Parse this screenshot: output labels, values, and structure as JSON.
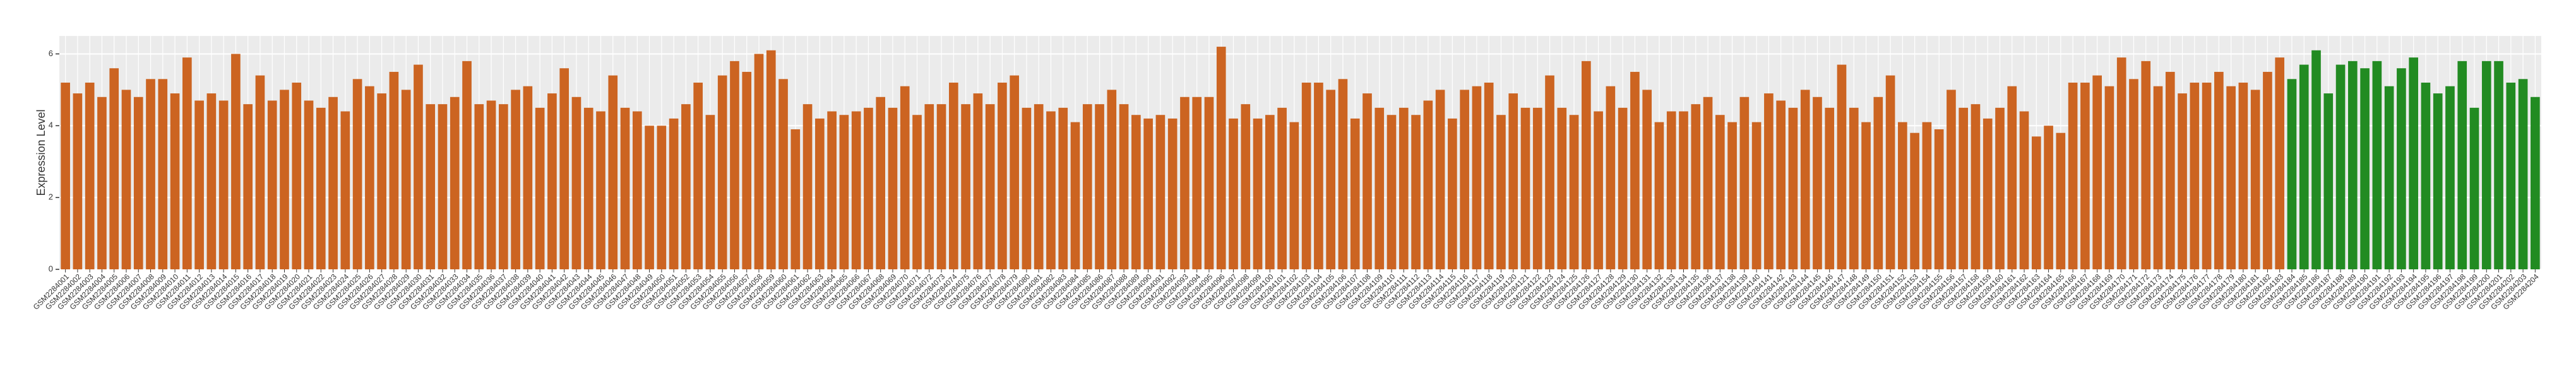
{
  "chart_data": {
    "type": "bar",
    "y_label": "Expression Level",
    "categories": [
      "GSM2284001",
      "GSM2284002",
      "GSM2284003",
      "GSM2284004",
      "GSM2284005",
      "GSM2284006",
      "GSM2284007",
      "GSM2284008",
      "GSM2284009",
      "GSM2284010",
      "GSM2284011",
      "GSM2284012",
      "GSM2284013",
      "GSM2284014",
      "GSM2284015",
      "GSM2284016",
      "GSM2284017",
      "GSM2284018",
      "GSM2284019",
      "GSM2284020",
      "GSM2284021",
      "GSM2284022",
      "GSM2284023",
      "GSM2284024",
      "GSM2284025",
      "GSM2284026",
      "GSM2284027",
      "GSM2284028",
      "GSM2284029",
      "GSM2284030",
      "GSM2284031",
      "GSM2284032",
      "GSM2284033",
      "GSM2284034",
      "GSM2284035",
      "GSM2284036",
      "GSM2284037",
      "GSM2284038",
      "GSM2284039",
      "GSM2284040",
      "GSM2284041",
      "GSM2284042",
      "GSM2284043",
      "GSM2284044",
      "GSM2284045",
      "GSM2284046",
      "GSM2284047",
      "GSM2284048",
      "GSM2284049",
      "GSM2284050",
      "GSM2284051",
      "GSM2284052",
      "GSM2284053",
      "GSM2284054",
      "GSM2284055",
      "GSM2284056",
      "GSM2284057",
      "GSM2284058",
      "GSM2284059",
      "GSM2284060",
      "GSM2284061",
      "GSM2284062",
      "GSM2284063",
      "GSM2284064",
      "GSM2284065",
      "GSM2284066",
      "GSM2284067",
      "GSM2284068",
      "GSM2284069",
      "GSM2284070",
      "GSM2284071",
      "GSM2284072",
      "GSM2284073",
      "GSM2284074",
      "GSM2284075",
      "GSM2284076",
      "GSM2284077",
      "GSM2284078",
      "GSM2284079",
      "GSM2284080",
      "GSM2284081",
      "GSM2284082",
      "GSM2284083",
      "GSM2284084",
      "GSM2284085",
      "GSM2284086",
      "GSM2284087",
      "GSM2284088",
      "GSM2284089",
      "GSM2284090",
      "GSM2284091",
      "GSM2284092",
      "GSM2284093",
      "GSM2284094",
      "GSM2284095",
      "GSM2284096",
      "GSM2284097",
      "GSM2284098",
      "GSM2284099",
      "GSM2284100",
      "GSM2284101",
      "GSM2284102",
      "GSM2284103",
      "GSM2284104",
      "GSM2284105",
      "GSM2284106",
      "GSM2284107",
      "GSM2284108",
      "GSM2284109",
      "GSM2284110",
      "GSM2284111",
      "GSM2284112",
      "GSM2284113",
      "GSM2284114",
      "GSM2284115",
      "GSM2284116",
      "GSM2284117",
      "GSM2284118",
      "GSM2284119",
      "GSM2284120",
      "GSM2284121",
      "GSM2284122",
      "GSM2284123",
      "GSM2284124",
      "GSM2284125",
      "GSM2284126",
      "GSM2284127",
      "GSM2284128",
      "GSM2284129",
      "GSM2284130",
      "GSM2284131",
      "GSM2284132",
      "GSM2284133",
      "GSM2284134",
      "GSM2284135",
      "GSM2284136",
      "GSM2284137",
      "GSM2284138",
      "GSM2284139",
      "GSM2284140",
      "GSM2284141",
      "GSM2284142",
      "GSM2284143",
      "GSM2284144",
      "GSM2284145",
      "GSM2284146",
      "GSM2284147",
      "GSM2284148",
      "GSM2284149",
      "GSM2284150",
      "GSM2284151",
      "GSM2284152",
      "GSM2284153",
      "GSM2284154",
      "GSM2284155",
      "GSM2284156",
      "GSM2284157",
      "GSM2284158",
      "GSM2284159",
      "GSM2284160",
      "GSM2284161",
      "GSM2284162",
      "GSM2284163",
      "GSM2284164",
      "GSM2284165",
      "GSM2284166",
      "GSM2284167",
      "GSM2284168",
      "GSM2284169",
      "GSM2284170",
      "GSM2284171",
      "GSM2284172",
      "GSM2284173",
      "GSM2284174",
      "GSM2284175",
      "GSM2284176",
      "GSM2284177",
      "GSM2284178",
      "GSM2284179",
      "GSM2284180",
      "GSM2284181",
      "GSM2284182",
      "GSM2284183",
      "GSM2284184",
      "GSM2284185",
      "GSM2284186",
      "GSM2284187",
      "GSM2284188",
      "GSM2284189",
      "GSM2284190",
      "GSM2284191",
      "GSM2284192",
      "GSM2284193",
      "GSM2284194",
      "GSM2284195",
      "GSM2284196",
      "GSM2284197",
      "GSM2284198",
      "GSM2284199",
      "GSM2284200",
      "GSM2284201",
      "GSM2284202",
      "GSM2284203",
      "GSM2284204"
    ],
    "values": [
      5.2,
      4.9,
      5.2,
      4.8,
      5.6,
      5.0,
      4.8,
      5.3,
      5.3,
      4.9,
      5.9,
      4.7,
      4.9,
      4.7,
      6.0,
      4.6,
      5.4,
      4.7,
      5.0,
      5.2,
      4.7,
      4.5,
      4.8,
      4.4,
      5.3,
      5.1,
      4.9,
      5.5,
      5.0,
      5.7,
      4.6,
      4.6,
      4.8,
      5.8,
      4.6,
      4.7,
      4.6,
      5.0,
      5.1,
      4.5,
      4.9,
      5.6,
      4.8,
      4.5,
      4.4,
      5.4,
      4.5,
      4.4,
      4.0,
      4.0,
      4.2,
      4.6,
      5.2,
      4.3,
      5.4,
      5.8,
      5.5,
      6.0,
      6.1,
      5.3,
      3.9,
      4.6,
      4.2,
      4.4,
      4.3,
      4.4,
      4.5,
      4.8,
      4.5,
      5.1,
      4.3,
      4.6,
      4.6,
      5.2,
      4.6,
      4.9,
      4.6,
      5.2,
      5.4,
      4.5,
      4.6,
      4.4,
      4.5,
      4.1,
      4.6,
      4.6,
      5.0,
      4.6,
      4.3,
      4.2,
      4.3,
      4.2,
      4.8,
      4.8,
      4.8,
      6.2,
      4.2,
      4.6,
      4.2,
      4.3,
      4.5,
      4.1,
      5.2,
      5.2,
      5.0,
      5.3,
      4.2,
      4.9,
      4.5,
      4.3,
      4.5,
      4.3,
      4.7,
      5.0,
      4.2,
      5.0,
      5.1,
      5.2,
      4.3,
      4.9,
      4.5,
      4.5,
      5.4,
      4.5,
      4.3,
      5.8,
      4.4,
      5.1,
      4.5,
      5.5,
      5.0,
      4.1,
      4.4,
      4.4,
      4.6,
      4.8,
      4.3,
      4.1,
      4.8,
      4.1,
      4.9,
      4.7,
      4.5,
      5.0,
      4.8,
      4.5,
      5.7,
      4.5,
      4.1,
      4.8,
      5.4,
      4.1,
      3.8,
      4.1,
      3.9,
      5.0,
      4.5,
      4.6,
      4.2,
      4.5,
      5.1,
      4.4,
      3.7,
      4.0,
      3.8,
      5.2,
      5.2,
      5.4,
      5.1,
      5.9,
      5.3,
      5.8,
      5.1,
      5.5,
      4.9,
      5.2,
      5.2,
      5.5,
      5.1,
      5.2,
      5.0,
      5.5,
      5.9,
      5.3,
      5.7,
      6.1,
      4.9,
      5.7,
      5.8,
      5.6,
      5.8,
      5.1,
      5.6,
      5.9,
      5.2,
      4.9,
      5.1,
      5.8,
      4.5,
      5.8,
      5.8,
      5.2,
      5.3,
      4.8
    ],
    "colors": [
      "#cc6421",
      "#cc6421",
      "#cc6421",
      "#cc6421",
      "#cc6421",
      "#cc6421",
      "#cc6421",
      "#cc6421",
      "#cc6421",
      "#cc6421",
      "#cc6421",
      "#cc6421",
      "#cc6421",
      "#cc6421",
      "#cc6421",
      "#cc6421",
      "#cc6421",
      "#cc6421",
      "#cc6421",
      "#cc6421",
      "#cc6421",
      "#cc6421",
      "#cc6421",
      "#cc6421",
      "#cc6421",
      "#cc6421",
      "#cc6421",
      "#cc6421",
      "#cc6421",
      "#cc6421",
      "#cc6421",
      "#cc6421",
      "#cc6421",
      "#cc6421",
      "#cc6421",
      "#cc6421",
      "#cc6421",
      "#cc6421",
      "#cc6421",
      "#cc6421",
      "#cc6421",
      "#cc6421",
      "#cc6421",
      "#cc6421",
      "#cc6421",
      "#cc6421",
      "#cc6421",
      "#cc6421",
      "#cc6421",
      "#cc6421",
      "#cc6421",
      "#cc6421",
      "#cc6421",
      "#cc6421",
      "#cc6421",
      "#cc6421",
      "#cc6421",
      "#cc6421",
      "#cc6421",
      "#cc6421",
      "#cc6421",
      "#cc6421",
      "#cc6421",
      "#cc6421",
      "#cc6421",
      "#cc6421",
      "#cc6421",
      "#cc6421",
      "#cc6421",
      "#cc6421",
      "#cc6421",
      "#cc6421",
      "#cc6421",
      "#cc6421",
      "#cc6421",
      "#cc6421",
      "#cc6421",
      "#cc6421",
      "#cc6421",
      "#cc6421",
      "#cc6421",
      "#cc6421",
      "#cc6421",
      "#cc6421",
      "#cc6421",
      "#cc6421",
      "#cc6421",
      "#cc6421",
      "#cc6421",
      "#cc6421",
      "#cc6421",
      "#cc6421",
      "#cc6421",
      "#cc6421",
      "#cc6421",
      "#cc6421",
      "#cc6421",
      "#cc6421",
      "#cc6421",
      "#cc6421",
      "#cc6421",
      "#cc6421",
      "#cc6421",
      "#cc6421",
      "#cc6421",
      "#cc6421",
      "#cc6421",
      "#cc6421",
      "#cc6421",
      "#cc6421",
      "#cc6421",
      "#cc6421",
      "#cc6421",
      "#cc6421",
      "#cc6421",
      "#cc6421",
      "#cc6421",
      "#cc6421",
      "#cc6421",
      "#cc6421",
      "#cc6421",
      "#cc6421",
      "#cc6421",
      "#cc6421",
      "#cc6421",
      "#cc6421",
      "#cc6421",
      "#cc6421",
      "#cc6421",
      "#cc6421",
      "#cc6421",
      "#cc6421",
      "#cc6421",
      "#cc6421",
      "#cc6421",
      "#cc6421",
      "#cc6421",
      "#cc6421",
      "#cc6421",
      "#cc6421",
      "#cc6421",
      "#cc6421",
      "#cc6421",
      "#cc6421",
      "#cc6421",
      "#cc6421",
      "#cc6421",
      "#cc6421",
      "#cc6421",
      "#cc6421",
      "#cc6421",
      "#cc6421",
      "#cc6421",
      "#cc6421",
      "#cc6421",
      "#cc6421",
      "#cc6421",
      "#cc6421",
      "#cc6421",
      "#cc6421",
      "#cc6421",
      "#cc6421",
      "#cc6421",
      "#cc6421",
      "#cc6421",
      "#cc6421",
      "#cc6421",
      "#cc6421",
      "#cc6421",
      "#cc6421",
      "#cc6421",
      "#cc6421",
      "#cc6421",
      "#cc6421",
      "#cc6421",
      "#cc6421",
      "#cc6421",
      "#cc6421",
      "#cc6421",
      "#cc6421",
      "#cc6421",
      "#cc6421",
      "#cc6421",
      "#228b22",
      "#228b22",
      "#228b22",
      "#228b22",
      "#228b22",
      "#228b22",
      "#228b22",
      "#228b22",
      "#228b22",
      "#228b22",
      "#228b22",
      "#228b22",
      "#228b22",
      "#228b22",
      "#228b22",
      "#228b22",
      "#228b22",
      "#228b22",
      "#228b22",
      "#228b22",
      "#228b22"
    ],
    "ylim": [
      0,
      6.5
    ],
    "yticks": [
      0,
      2,
      4,
      6
    ],
    "grid": true
  }
}
